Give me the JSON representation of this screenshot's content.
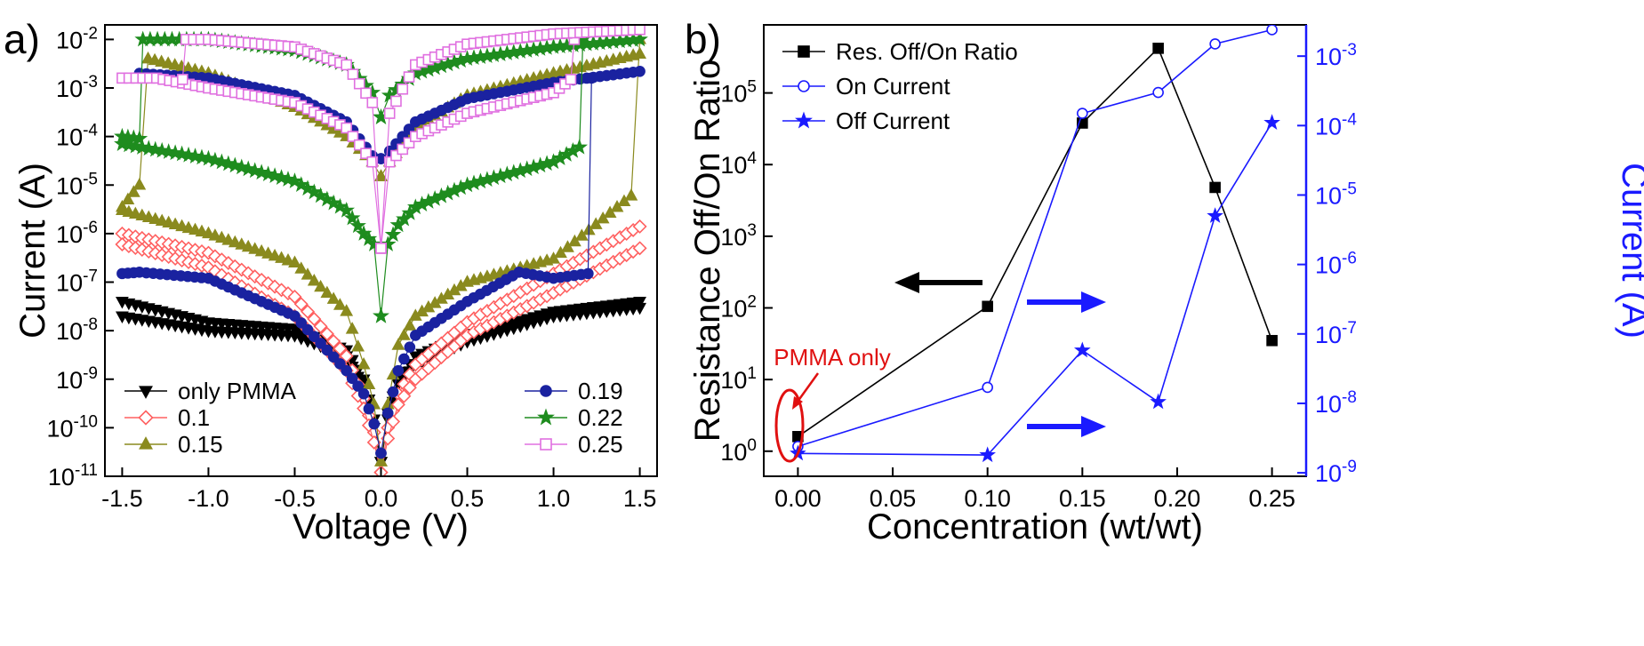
{
  "chart_data": [
    {
      "panel_label": "a)",
      "type": "scatter",
      "xlabel": "Voltage (V)",
      "ylabel": "Current (A)",
      "xlim": [
        -1.6,
        1.6
      ],
      "ylim_log10": [
        -11,
        -1.7
      ],
      "yscale": "log",
      "x_ticks": [
        "-1.5",
        "-1.0",
        "-0.5",
        "0.0",
        "0.5",
        "1.0",
        "1.5"
      ],
      "y_ticks": [
        {
          "base": "10",
          "exp": "-11"
        },
        {
          "base": "10",
          "exp": "-10"
        },
        {
          "base": "10",
          "exp": "-9"
        },
        {
          "base": "10",
          "exp": "-8"
        },
        {
          "base": "10",
          "exp": "-7"
        },
        {
          "base": "10",
          "exp": "-6"
        },
        {
          "base": "10",
          "exp": "-5"
        },
        {
          "base": "10",
          "exp": "-4"
        },
        {
          "base": "10",
          "exp": "-3"
        },
        {
          "base": "10",
          "exp": "-2"
        }
      ],
      "legend_placement": "bottom",
      "series": [
        {
          "name": "only PMMA",
          "color": "#000000",
          "marker": "triangle-down",
          "filled": true,
          "branches": [
            {
              "x": [
                -1.5,
                -1.0,
                -0.5,
                -0.2,
                -0.1,
                -0.04,
                0.0
              ],
              "y": [
                2e-08,
                1e-08,
                8e-09,
                3e-09,
                7e-10,
                1e-10,
                2e-11
              ]
            },
            {
              "x": [
                -1.5,
                -1.0,
                -0.5,
                -0.2,
                -0.1,
                -0.04,
                0.0
              ],
              "y": [
                4e-08,
                1.5e-08,
                1.1e-08,
                4e-09,
                1e-09,
                1.5e-10,
                2e-11
              ]
            },
            {
              "x": [
                0.0,
                0.04,
                0.1,
                0.2,
                0.5,
                1.0,
                1.5
              ],
              "y": [
                2e-11,
                1.5e-10,
                8e-10,
                2e-09,
                6e-09,
                2e-08,
                3e-08
              ]
            },
            {
              "x": [
                0.0,
                0.04,
                0.1,
                0.2,
                0.5,
                1.0,
                1.5
              ],
              "y": [
                2e-11,
                2e-10,
                1e-09,
                3e-09,
                8e-09,
                2.5e-08,
                4e-08
              ]
            }
          ]
        },
        {
          "name": "0.1",
          "color": "#ff6060",
          "marker": "diamond",
          "filled": false,
          "branches": [
            {
              "x": [
                -1.5,
                -1.0,
                -0.5,
                -0.2,
                -0.1,
                -0.04,
                0.0
              ],
              "y": [
                1e-06,
                4e-07,
                5e-08,
                3e-09,
                4e-10,
                8e-11,
                1.2e-11
              ]
            },
            {
              "x": [
                -1.5,
                -1.0,
                -0.5,
                -0.2,
                -0.1,
                -0.04,
                0.0
              ],
              "y": [
                6e-07,
                2e-07,
                2e-08,
                1.5e-09,
                2.5e-10,
                5e-11,
                1.2e-11
              ]
            },
            {
              "x": [
                0.0,
                0.04,
                0.1,
                0.2,
                0.5,
                1.0,
                1.5
              ],
              "y": [
                1.2e-11,
                1e-10,
                5e-10,
                2e-09,
                1.5e-08,
                1.5e-07,
                1.4e-06
              ]
            },
            {
              "x": [
                0.0,
                0.04,
                0.1,
                0.2,
                0.5,
                1.0,
                1.5
              ],
              "y": [
                1.2e-11,
                6e-11,
                3e-10,
                1e-09,
                8e-09,
                6e-08,
                5e-07
              ]
            }
          ]
        },
        {
          "name": "0.15",
          "color": "#8a8a1e",
          "marker": "triangle-up",
          "filled": true,
          "branches": [
            {
              "x": [
                -1.5,
                -1.4,
                -1.35,
                -1.0,
                -0.5,
                -0.2,
                -0.05,
                0.0
              ],
              "y": [
                3.5e-06,
                1e-05,
                0.004,
                0.002,
                0.0004,
                0.0001,
                3e-05,
                1.5e-05
              ]
            },
            {
              "x": [
                -1.5,
                -1.0,
                -0.5,
                -0.2,
                -0.1,
                -0.04,
                0.0
              ],
              "y": [
                3e-06,
                1e-06,
                2.5e-07,
                2.5e-08,
                2e-09,
                3e-10,
                2e-11
              ]
            },
            {
              "x": [
                0.0,
                0.04,
                0.1,
                0.2,
                0.5,
                1.0,
                1.45,
                1.5
              ],
              "y": [
                2e-11,
                3e-10,
                5e-09,
                2e-08,
                1e-07,
                3e-07,
                6e-06,
                0.01
              ]
            },
            {
              "x": [
                0.0,
                0.05,
                0.2,
                0.5,
                1.0,
                1.5
              ],
              "y": [
                1.5e-05,
                3e-05,
                0.00015,
                0.0007,
                0.002,
                0.005
              ]
            }
          ]
        },
        {
          "name": "0.19",
          "color": "#1a22a0",
          "marker": "circle",
          "filled": true,
          "branches": [
            {
              "x": [
                -1.5,
                -1.4,
                -1.0,
                -0.5,
                -0.2,
                -0.1,
                -0.04,
                0.0
              ],
              "y": [
                1.5e-07,
                1.6e-07,
                1.2e-07,
                2e-08,
                1.5e-09,
                5e-10,
                1.2e-10,
                3e-11
              ]
            },
            {
              "x": [
                0.0,
                0.04,
                0.1,
                0.2,
                0.5,
                0.8,
                1.0,
                1.2,
                1.22
              ],
              "y": [
                3e-11,
                2e-10,
                1.5e-09,
                8e-09,
                4e-08,
                1.6e-07,
                1.2e-07,
                1.5e-07,
                0.0016
              ]
            },
            {
              "x": [
                -1.4,
                -1.0,
                -0.5,
                -0.2,
                -0.05,
                0.0
              ],
              "y": [
                0.002,
                0.0016,
                0.0007,
                0.0002,
                4e-05,
                3.5e-05
              ]
            },
            {
              "x": [
                0.0,
                0.05,
                0.2,
                0.5,
                1.0,
                1.5
              ],
              "y": [
                3.5e-05,
                5e-05,
                0.0002,
                0.0006,
                0.0013,
                0.0022
              ]
            }
          ]
        },
        {
          "name": "0.22",
          "color": "#1e8c1e",
          "marker": "star",
          "filled": true,
          "branches": [
            {
              "x": [
                -1.5,
                -1.4,
                -1.38,
                -1.0,
                -0.5,
                -0.2,
                -0.05,
                0.0
              ],
              "y": [
                0.0001,
                9e-05,
                0.01,
                0.01,
                0.006,
                0.003,
                0.0008,
                0.00025
              ]
            },
            {
              "x": [
                -1.5,
                -1.0,
                -0.5,
                -0.2,
                -0.1,
                -0.04,
                0.0
              ],
              "y": [
                7e-05,
                3.5e-05,
                1.2e-05,
                3e-06,
                1e-06,
                6e-07,
                2e-08
              ]
            },
            {
              "x": [
                0.0,
                0.04,
                0.1,
                0.2,
                0.5,
                1.0,
                1.15,
                1.17
              ],
              "y": [
                2e-08,
                6e-07,
                1.5e-06,
                3.5e-06,
                1e-05,
                3e-05,
                6e-05,
                0.01
              ]
            },
            {
              "x": [
                0.0,
                0.05,
                0.2,
                0.5,
                1.0,
                1.5
              ],
              "y": [
                0.00025,
                0.0007,
                0.002,
                0.004,
                0.007,
                0.01
              ]
            }
          ]
        },
        {
          "name": "0.25",
          "color": "#e070e0",
          "marker": "square",
          "filled": false,
          "branches": [
            {
              "x": [
                -1.5,
                -1.3,
                -1.0,
                -0.5,
                -0.2,
                -0.05,
                0.0
              ],
              "y": [
                0.0016,
                0.0016,
                0.001,
                0.0005,
                0.00015,
                3e-05,
                5e-07
              ]
            },
            {
              "x": [
                -1.15,
                -1.13,
                -1.0,
                -0.5,
                -0.2,
                -0.05,
                0.0
              ],
              "y": [
                0.0015,
                0.01,
                0.01,
                0.007,
                0.003,
                0.0005,
                5e-07
              ]
            },
            {
              "x": [
                0.0,
                0.05,
                0.2,
                0.5,
                1.0,
                1.1,
                1.12
              ],
              "y": [
                5e-07,
                3e-05,
                0.0001,
                0.0003,
                0.0008,
                0.0015,
                0.01
              ]
            },
            {
              "x": [
                0.0,
                0.05,
                0.2,
                0.5,
                1.0,
                1.5
              ],
              "y": [
                5e-07,
                0.0003,
                0.003,
                0.008,
                0.013,
                0.016
              ]
            }
          ]
        }
      ]
    },
    {
      "panel_label": "b)",
      "type": "line",
      "xlabel": "Concentration (wt/wt)",
      "ylabel": "Resistance Off/On Ratio",
      "ylabel_right": "Current (A)",
      "xlim": [
        -0.018,
        0.268
      ],
      "ylim_log10": [
        -0.35,
        5.95
      ],
      "ylim_right_log10": [
        -9.05,
        -2.55
      ],
      "yscale": "log",
      "x_ticks": [
        "0.00",
        "0.05",
        "0.10",
        "0.15",
        "0.20",
        "0.25"
      ],
      "y_ticks": [
        {
          "base": "10",
          "exp": "0"
        },
        {
          "base": "10",
          "exp": "1"
        },
        {
          "base": "10",
          "exp": "2"
        },
        {
          "base": "10",
          "exp": "3"
        },
        {
          "base": "10",
          "exp": "4"
        },
        {
          "base": "10",
          "exp": "5"
        }
      ],
      "y_ticks_right": [
        {
          "base": "10",
          "exp": "-9"
        },
        {
          "base": "10",
          "exp": "-8"
        },
        {
          "base": "10",
          "exp": "-7"
        },
        {
          "base": "10",
          "exp": "-6"
        },
        {
          "base": "10",
          "exp": "-5"
        },
        {
          "base": "10",
          "exp": "-4"
        },
        {
          "base": "10",
          "exp": "-3"
        }
      ],
      "legend_placement": "top-left",
      "annotation": "PMMA only",
      "series": [
        {
          "name": "Res. Off/On Ratio",
          "axis": "left",
          "color": "#000000",
          "marker": "square",
          "filled": true,
          "x": [
            0.0,
            0.1,
            0.15,
            0.19,
            0.22,
            0.25
          ],
          "y": [
            1.6,
            105,
            38000,
            420000,
            4800,
            35
          ]
        },
        {
          "name": "On Current",
          "axis": "right",
          "color": "#1a1aff",
          "marker": "circle",
          "filled": false,
          "x": [
            0.0,
            0.1,
            0.15,
            0.19,
            0.22,
            0.25
          ],
          "y": [
            2.4e-09,
            1.7e-08,
            0.00015,
            0.0003,
            0.0015,
            0.0024
          ]
        },
        {
          "name": "Off Current",
          "axis": "right",
          "color": "#1a1aff",
          "marker": "star",
          "filled": true,
          "x": [
            0.0,
            0.1,
            0.15,
            0.19,
            0.22,
            0.25
          ],
          "y": [
            1.9e-09,
            1.8e-09,
            5.8e-08,
            1.05e-08,
            5e-06,
            0.00011
          ]
        }
      ]
    }
  ]
}
